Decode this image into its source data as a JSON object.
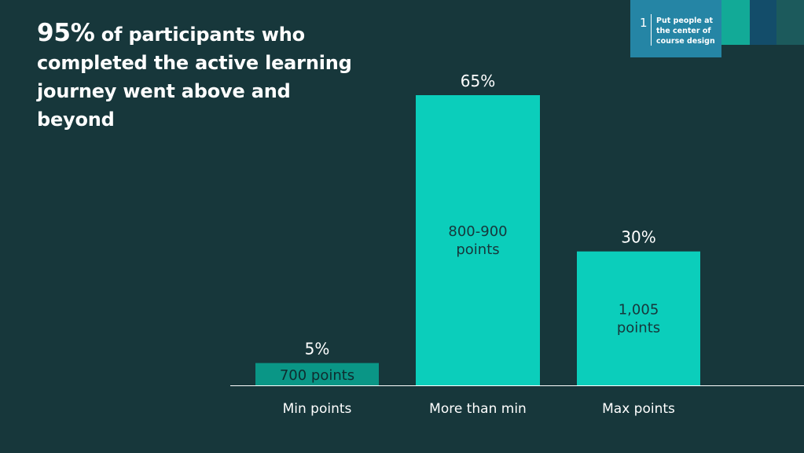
{
  "header": {
    "title_highlight": "95%",
    "title_rest": " of participants who completed the active learning journey went above and beyond"
  },
  "badge": {
    "number": "1",
    "text": "Put people at the center of course design"
  },
  "colors": {
    "background": "#17373b",
    "bar_primary": "#0bcebb",
    "bar_min": "#0a9686",
    "badge_blue": "#2585a5",
    "strip_teal": "#12aa97",
    "strip_navy": "#134d6a",
    "strip_dark": "#1c5a5c"
  },
  "chart_data": {
    "type": "bar",
    "title": "95% of participants who completed the active learning journey went above and beyond",
    "xlabel": "",
    "ylabel": "",
    "ylim": [
      0,
      70
    ],
    "categories": [
      "Min points",
      "More than min",
      "Max points"
    ],
    "values": [
      5,
      65,
      30
    ],
    "value_labels": [
      "5%",
      "65%",
      "30%"
    ],
    "inner_labels": [
      [
        "700 points"
      ],
      [
        "800-900",
        "points"
      ],
      [
        "1,005",
        "points"
      ]
    ],
    "grid": false,
    "legend": "none"
  }
}
